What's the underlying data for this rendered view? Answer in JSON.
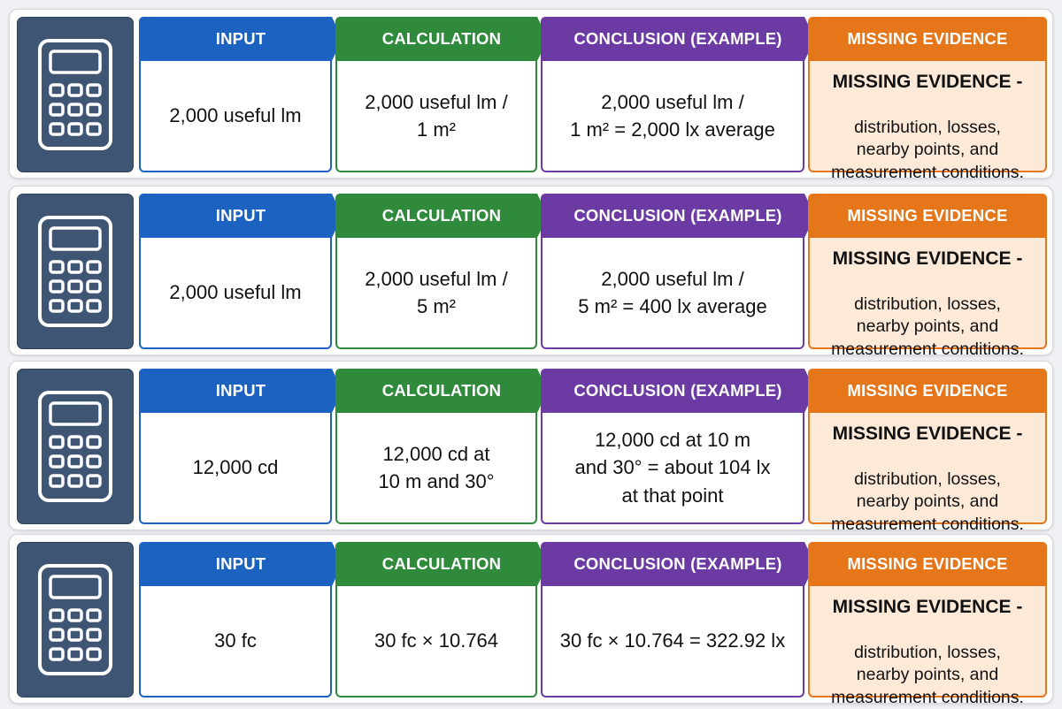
{
  "colors": {
    "input": "#1c63c1",
    "calculation": "#2f8a3b",
    "conclusion": "#6c3aa3",
    "missing": "#e6761a",
    "missing_fill": "#fde9d8",
    "icon_tile": "#3e5573"
  },
  "icon": "calculator-icon",
  "rows": [
    {
      "input_label": "INPUT",
      "input": "2,000 useful lm",
      "calc_label": "CALCULATION",
      "calc": "2,000 useful lm /\n1 m²",
      "concl_label": "CONCLUSION (EXAMPLE)",
      "concl": "2,000 useful lm /\n1 m² = 2,000 lx average",
      "missing_label": "MISSING EVIDENCE",
      "missing_title": "MISSING EVIDENCE -",
      "missing_text": "distribution, losses,\nnearby points, and\nmeasurement conditions."
    },
    {
      "input_label": "INPUT",
      "input": "2,000 useful lm",
      "calc_label": "CALCULATION",
      "calc": "2,000 useful lm /\n5 m²",
      "concl_label": "CONCLUSION (EXAMPLE)",
      "concl": "2,000 useful lm /\n5 m² = 400 lx average",
      "missing_label": "MISSING EVIDENCE",
      "missing_title": "MISSING EVIDENCE -",
      "missing_text": "distribution, losses,\nnearby points, and\nmeasurement conditions."
    },
    {
      "input_label": "INPUT",
      "input": "12,000 cd",
      "calc_label": "CALCULATION",
      "calc": "12,000 cd at\n10 m and 30°",
      "concl_label": "CONCLUSION (EXAMPLE)",
      "concl": "12,000 cd at 10 m\nand 30° = about 104 lx\nat that point",
      "missing_label": "MISSING EVIDENCE",
      "missing_title": "MISSING EVIDENCE -",
      "missing_text": "distribution, losses,\nnearby points, and\nmeasurement conditions."
    },
    {
      "input_label": "INPUT",
      "input": "30 fc",
      "calc_label": "CALCULATION",
      "calc": "30 fc × 10.764",
      "concl_label": "CONCLUSION (EXAMPLE)",
      "concl": "30 fc × 10.764 = 322.92 lx",
      "missing_label": "MISSING EVIDENCE",
      "missing_title": "MISSING EVIDENCE -",
      "missing_text": "distribution, losses,\nnearby points, and\nmeasurement conditions."
    }
  ]
}
